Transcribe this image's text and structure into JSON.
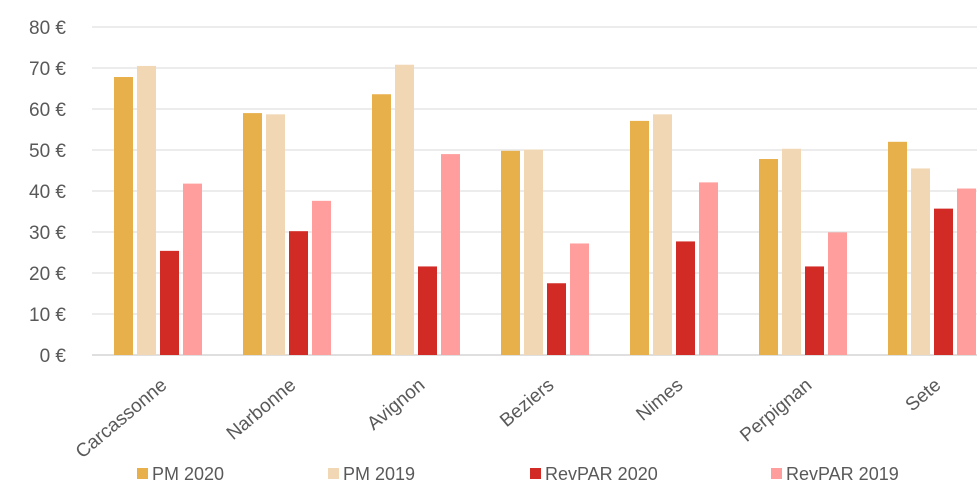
{
  "chart_data": {
    "type": "bar",
    "categories": [
      "Carcassonne",
      "Narbonne",
      "Avignon",
      "Beziers",
      "Nimes",
      "Perpignan",
      "Sete"
    ],
    "series": [
      {
        "name": "PM 2020",
        "color": "#E8B04A",
        "values": [
          67.8,
          59.0,
          63.6,
          49.8,
          57.1,
          47.8,
          52.0
        ]
      },
      {
        "name": "PM 2019",
        "color": "#F2D7B5",
        "values": [
          70.5,
          58.7,
          70.8,
          50.1,
          58.7,
          50.3,
          45.5
        ]
      },
      {
        "name": "RevPAR 2020",
        "color": "#D22B26",
        "values": [
          25.4,
          30.2,
          21.6,
          17.5,
          27.7,
          21.6,
          35.7
        ]
      },
      {
        "name": "RevPAR 2019",
        "color": "#FF9E9C",
        "values": [
          41.8,
          37.6,
          49.0,
          27.2,
          42.1,
          29.9,
          40.6
        ]
      }
    ],
    "y_ticks": [
      "0 €",
      "10 €",
      "20 €",
      "30 €",
      "40 €",
      "50 €",
      "60 €",
      "70 €",
      "80 €"
    ],
    "ylim": [
      0,
      80
    ],
    "grid": true,
    "legend_position": "bottom",
    "title": "",
    "xlabel": "",
    "ylabel": ""
  },
  "colors": {
    "grid": "#D9D9D9",
    "axis": "#BFBFBF",
    "text": "#595959"
  }
}
